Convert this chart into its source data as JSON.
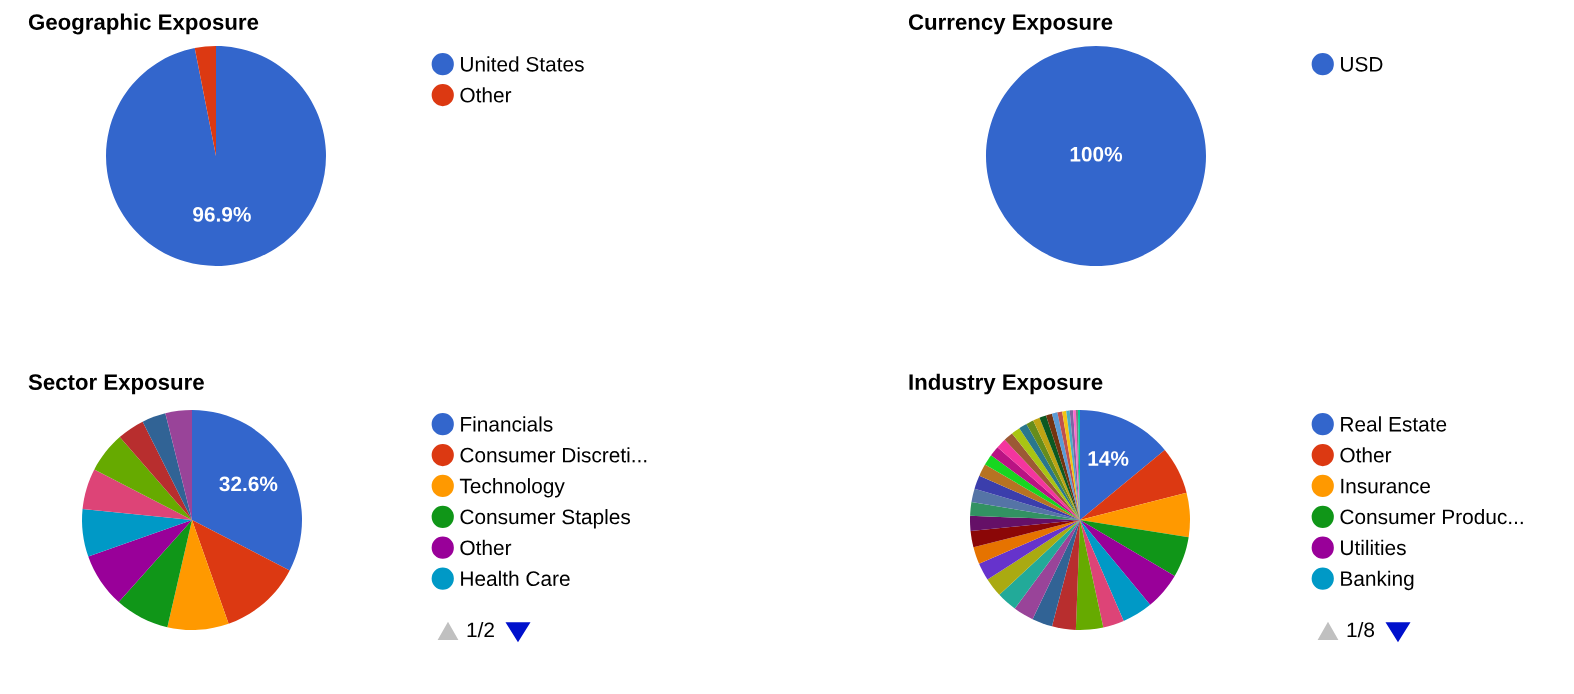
{
  "chart_data": [
    {
      "type": "pie",
      "title": "Geographic Exposure",
      "categories": [
        "United States",
        "Other"
      ],
      "values": [
        96.9,
        3.1
      ],
      "colors": [
        "#3366cc",
        "#dc3912"
      ],
      "value_labels": [
        "96.9%",
        null
      ],
      "legend": "right"
    },
    {
      "type": "pie",
      "title": "Currency Exposure",
      "categories": [
        "USD"
      ],
      "values": [
        100
      ],
      "colors": [
        "#3366cc"
      ],
      "value_labels": [
        "100%"
      ],
      "legend": "right"
    },
    {
      "type": "pie",
      "title": "Sector Exposure",
      "categories": [
        "Financials",
        "Consumer Discreti...",
        "Technology",
        "Consumer Staples",
        "Other",
        "Health Care",
        null,
        null,
        null,
        null,
        null
      ],
      "values": [
        32.6,
        12,
        9,
        8,
        8,
        7,
        6,
        6,
        4,
        3.5,
        3.9
      ],
      "colors": [
        "#3366cc",
        "#dc3912",
        "#ff9900",
        "#109618",
        "#990099",
        "#0099c6",
        "#dd4477",
        "#66aa00",
        "#b82e2e",
        "#316395",
        "#994499"
      ],
      "value_labels": [
        "32.6%",
        null,
        null,
        null,
        null,
        null,
        null,
        null,
        null,
        null,
        null
      ],
      "legend": "right",
      "annotations": [
        "1/2"
      ]
    },
    {
      "type": "pie",
      "title": "Industry Exposure",
      "categories": [
        "Real Estate",
        "Other",
        "Insurance",
        "Consumer Produc...",
        "Utilities",
        "Banking",
        null,
        null,
        null,
        null,
        null,
        null,
        null,
        null,
        null,
        null,
        null,
        null,
        null,
        null,
        null,
        null,
        null,
        null,
        null,
        null,
        null,
        null,
        null,
        null,
        null,
        null,
        null,
        null,
        null,
        null,
        null,
        null,
        null
      ],
      "values": [
        14,
        7,
        6.5,
        6,
        5.5,
        4.5,
        3.1,
        4,
        3.5,
        3,
        3,
        3,
        2.8,
        2.6,
        2.5,
        2.4,
        2.2,
        2,
        2,
        2,
        1.8,
        1.6,
        1.5,
        1.5,
        1.4,
        1.3,
        1.2,
        1.1,
        1,
        1,
        0.9,
        0.8,
        0.7,
        0.6,
        0.5,
        0.5,
        0.4,
        0.3,
        0.3
      ],
      "colors": [
        "#3366cc",
        "#dc3912",
        "#ff9900",
        "#109618",
        "#990099",
        "#0099c6",
        "#dd4477",
        "#66aa00",
        "#b82e2e",
        "#316395",
        "#994499",
        "#22aa99",
        "#aaaa11",
        "#6633cc",
        "#e67300",
        "#8b0707",
        "#651067",
        "#329262",
        "#5574a6",
        "#3b3eac",
        "#b77322",
        "#16d620",
        "#b91383",
        "#f4359e",
        "#9c5935",
        "#a9c413",
        "#2a778d",
        "#668d1c",
        "#bea413",
        "#0c5922",
        "#743411",
        "#5b9bd5",
        "#c0504d",
        "#f2c314",
        "#4bacc6",
        "#8064a2",
        "#ff66cc",
        "#7f7f7f",
        "#00cc99"
      ],
      "value_labels": [
        "14%",
        null,
        null,
        null,
        null,
        null,
        null,
        null,
        null,
        null,
        null,
        null,
        null,
        null,
        null,
        null,
        null,
        null,
        null,
        null,
        null,
        null,
        null,
        null,
        null,
        null,
        null,
        null,
        null,
        null,
        null,
        null,
        null,
        null,
        null,
        null,
        null,
        null,
        null
      ],
      "legend": "right",
      "annotations": [
        "1/8"
      ]
    }
  ]
}
